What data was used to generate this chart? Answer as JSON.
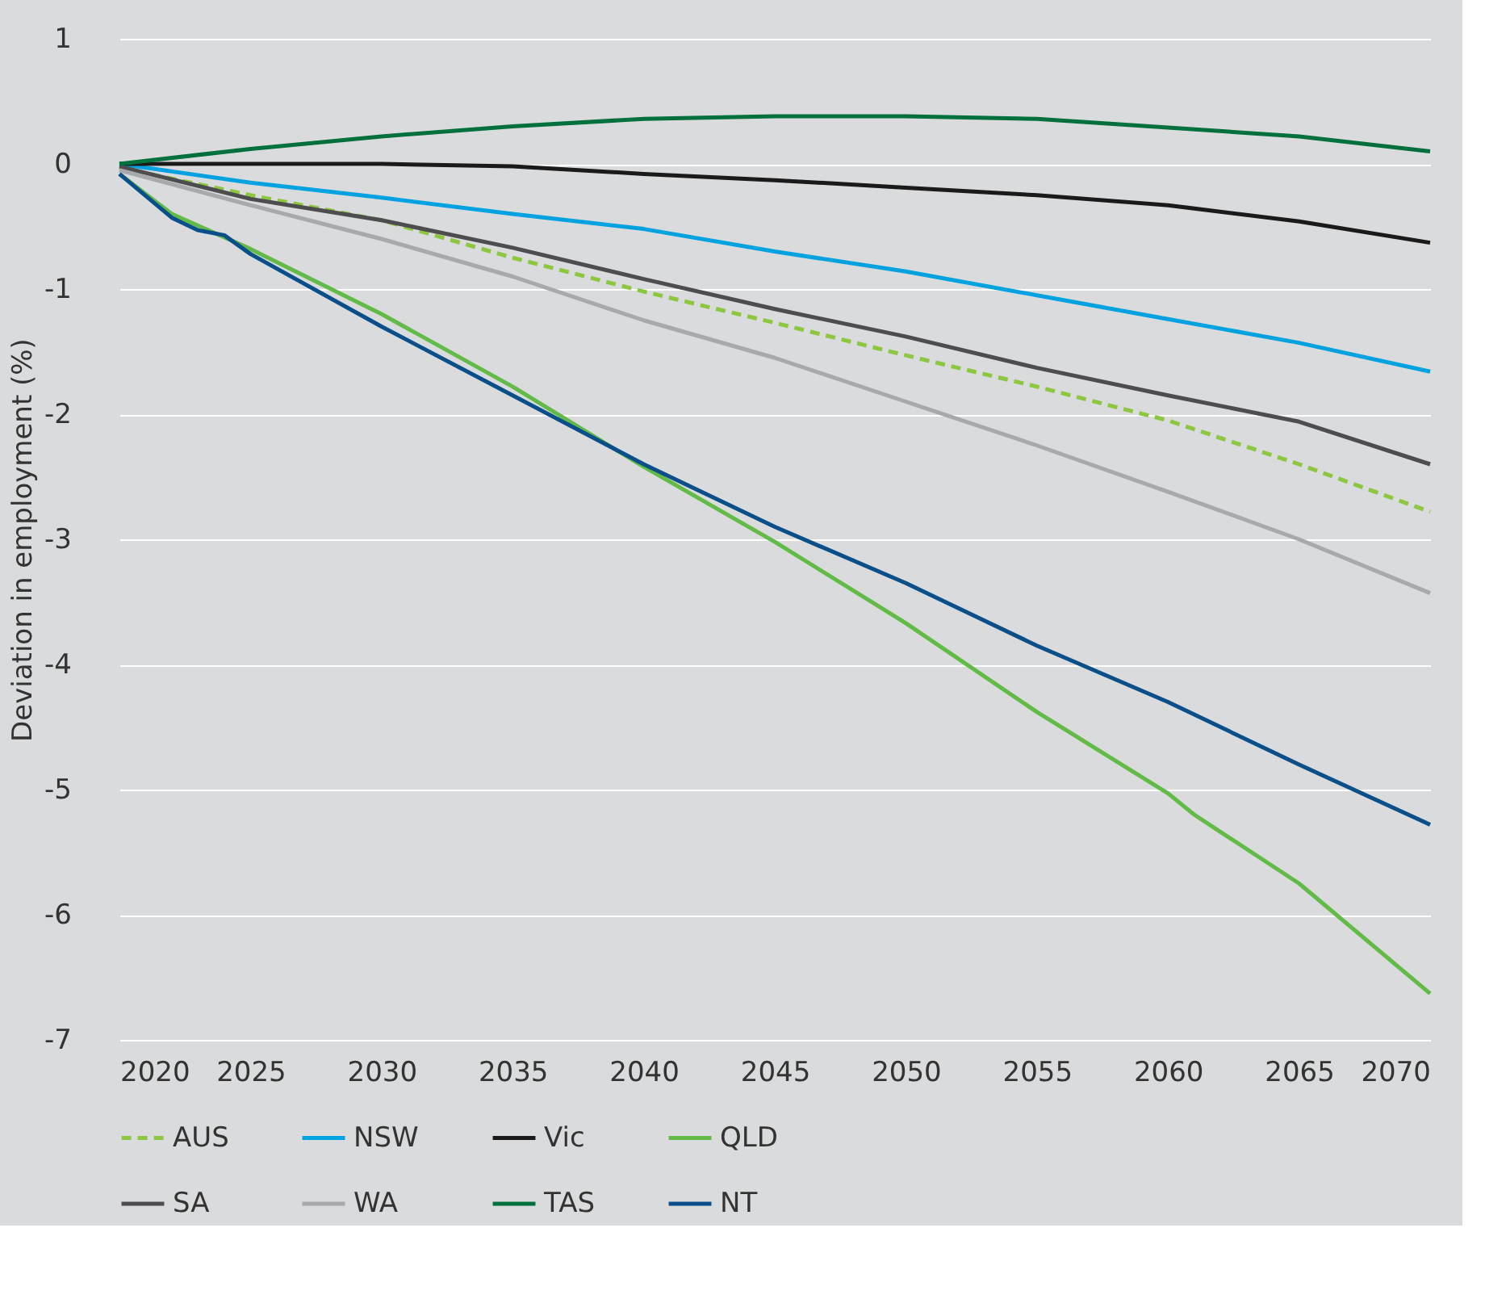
{
  "chart_data": {
    "type": "line",
    "ylabel": "Deviation in employment (%)",
    "xlim": [
      2020,
      2070
    ],
    "xticks": [
      2020,
      2025,
      2030,
      2035,
      2040,
      2045,
      2050,
      2055,
      2060,
      2065,
      2070
    ],
    "ylim": [
      -7,
      1
    ],
    "yticks": [
      -7,
      -6,
      -5,
      -4,
      -3,
      -2,
      -1,
      0,
      1
    ],
    "grid": "y",
    "legend": "bottom",
    "x": [
      2020,
      2025,
      2030,
      2035,
      2040,
      2045,
      2050,
      2055,
      2060,
      2065,
      2070
    ],
    "series": [
      {
        "name": "AUS",
        "color": "#8dc63f",
        "line_style": "dashed",
        "values": [
          -0.03,
          -0.25,
          -0.45,
          -0.75,
          -1.02,
          -1.27,
          -1.53,
          -1.78,
          -2.05,
          -2.4,
          -2.78
        ]
      },
      {
        "name": "NSW",
        "color": "#00a3e0",
        "line_style": "solid",
        "values": [
          0,
          -0.15,
          -0.27,
          -0.4,
          -0.52,
          -0.7,
          -0.86,
          -1.05,
          -1.24,
          -1.43,
          -1.66
        ]
      },
      {
        "name": "Vic",
        "color": "#1a1a1a",
        "line_style": "solid",
        "values": [
          0,
          0,
          0,
          -0.02,
          -0.08,
          -0.13,
          -0.19,
          -0.25,
          -0.33,
          -0.46,
          -0.63
        ]
      },
      {
        "name": "QLD",
        "color": "#62bb46",
        "line_style": "solid",
        "x": [
          2020,
          2022,
          2025,
          2030,
          2035,
          2040,
          2045,
          2050,
          2055,
          2060,
          2061,
          2065,
          2070
        ],
        "values": [
          -0.08,
          -0.4,
          -0.68,
          -1.2,
          -1.78,
          -2.42,
          -3.02,
          -3.67,
          -4.38,
          -5.03,
          -5.2,
          -5.75,
          -6.63
        ]
      },
      {
        "name": "SA",
        "color": "#4d4d4f",
        "line_style": "solid",
        "values": [
          -0.02,
          -0.28,
          -0.45,
          -0.67,
          -0.92,
          -1.16,
          -1.38,
          -1.63,
          -1.85,
          -2.06,
          -2.4
        ]
      },
      {
        "name": "WA",
        "color": "#a7a9ac",
        "line_style": "solid",
        "values": [
          -0.05,
          -0.33,
          -0.6,
          -0.9,
          -1.25,
          -1.55,
          -1.9,
          -2.25,
          -2.62,
          -3.0,
          -3.43
        ]
      },
      {
        "name": "TAS",
        "color": "#00703c",
        "line_style": "solid",
        "values": [
          0,
          0.12,
          0.22,
          0.3,
          0.36,
          0.38,
          0.38,
          0.36,
          0.29,
          0.22,
          0.1
        ]
      },
      {
        "name": "NT",
        "color": "#0b4f8a",
        "line_style": "solid",
        "x": [
          2020,
          2022,
          2023,
          2024,
          2025,
          2030,
          2035,
          2040,
          2045,
          2050,
          2055,
          2060,
          2065,
          2070
        ],
        "values": [
          -0.08,
          -0.43,
          -0.53,
          -0.57,
          -0.72,
          -1.3,
          -1.85,
          -2.4,
          -2.9,
          -3.35,
          -3.85,
          -4.3,
          -4.8,
          -5.28
        ]
      }
    ]
  }
}
